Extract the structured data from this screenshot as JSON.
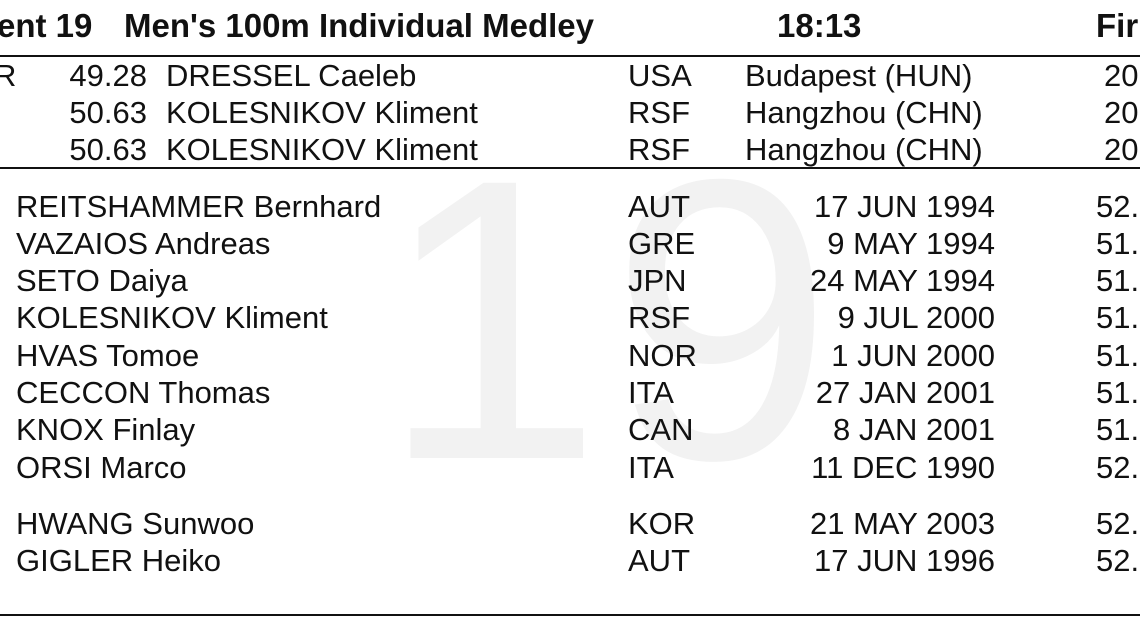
{
  "header": {
    "event": "ent 19",
    "title": "Men's 100m Individual Medley",
    "time": "18:13",
    "round": "Fir"
  },
  "watermark": "19",
  "records": [
    {
      "code": "R",
      "time": "49.28",
      "name": "DRESSEL Caeleb",
      "nat": "USA",
      "place": "Budapest (HUN)",
      "year": "20"
    },
    {
      "code": "",
      "time": "50.63",
      "name": "KOLESNIKOV Kliment",
      "nat": "RSF",
      "place": "Hangzhou (CHN)",
      "year": "20"
    },
    {
      "code": "",
      "time": "50.63",
      "name": "KOLESNIKOV Kliment",
      "nat": "RSF",
      "place": "Hangzhou (CHN)",
      "year": "20"
    }
  ],
  "entries": [
    {
      "name": "REITSHAMMER Bernhard",
      "nat": "AUT",
      "dob": "17 JUN 1994",
      "entry": "52."
    },
    {
      "name": "VAZAIOS Andreas",
      "nat": "GRE",
      "dob": "9 MAY 1994",
      "entry": "51."
    },
    {
      "name": "SETO Daiya",
      "nat": "JPN",
      "dob": "24 MAY 1994",
      "entry": "51."
    },
    {
      "name": "KOLESNIKOV Kliment",
      "nat": "RSF",
      "dob": "9 JUL 2000",
      "entry": "51."
    },
    {
      "name": "HVAS Tomoe",
      "nat": "NOR",
      "dob": "1 JUN 2000",
      "entry": "51."
    },
    {
      "name": "CECCON Thomas",
      "nat": "ITA",
      "dob": "27 JAN 2001",
      "entry": "51."
    },
    {
      "name": "KNOX Finlay",
      "nat": "CAN",
      "dob": "8 JAN 2001",
      "entry": "51."
    },
    {
      "name": "ORSI Marco",
      "nat": "ITA",
      "dob": "11 DEC 1990",
      "entry": "52."
    },
    {
      "name": "HWANG Sunwoo",
      "nat": "KOR",
      "dob": "21 MAY 2003",
      "entry": "52."
    },
    {
      "name": "GIGLER Heiko",
      "nat": "AUT",
      "dob": "17 JUN 1996",
      "entry": "52."
    }
  ]
}
